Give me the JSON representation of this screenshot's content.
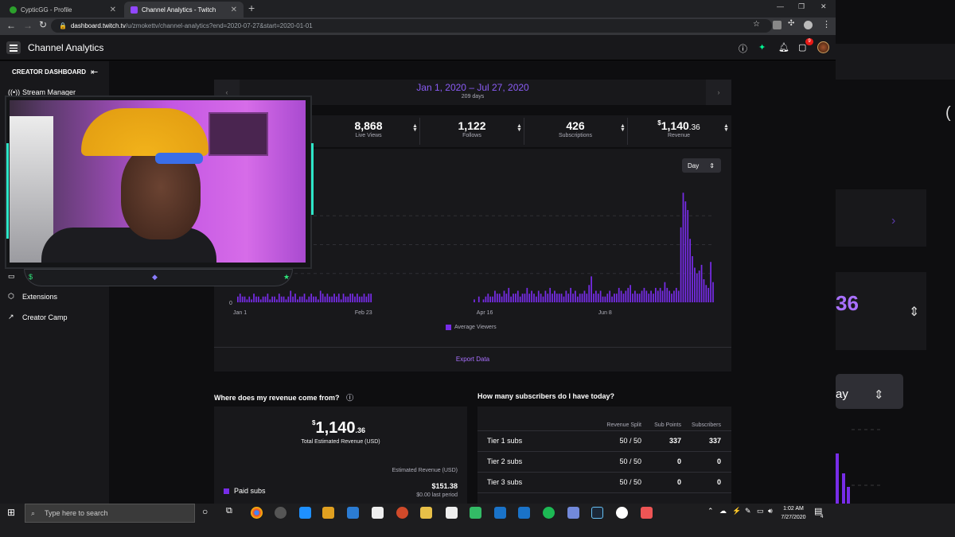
{
  "browser": {
    "tabs": [
      {
        "title": "CypticGG - Profile",
        "active": false
      },
      {
        "title": "Channel Analytics - Twitch",
        "active": true
      }
    ],
    "url_host": "dashboard.twitch.tv",
    "url_path": "/u/zmokettv/channel-analytics?end=2020-07-27&start=2020-01-01"
  },
  "header": {
    "title": "Channel Analytics",
    "notification_count": "9"
  },
  "sidebar": {
    "header": "CREATOR DASHBOARD",
    "items": [
      {
        "label": "Stream Manager",
        "icon": "broadcast-icon"
      },
      {
        "label": "Extensions",
        "icon": "extensions-icon"
      },
      {
        "label": "Creator Camp",
        "icon": "external-link-icon"
      }
    ]
  },
  "date_picker": {
    "range": "Jan 1, 2020 – Jul 27, 2020",
    "days": "209 days"
  },
  "stats": [
    {
      "value": "8,868",
      "label": "Live Views"
    },
    {
      "value": "1,122",
      "label": "Follows"
    },
    {
      "value": "426",
      "label": "Subscriptions"
    },
    {
      "value_currency": "$",
      "value_main": "1,140",
      "value_dec": ".36",
      "label": "Revenue"
    }
  ],
  "chart_controls": {
    "interval": "Day"
  },
  "chart_data": {
    "type": "bar",
    "series": [
      {
        "name": "Average Viewers"
      }
    ],
    "x_tick_labels": [
      "Jan 1",
      "Feb 23",
      "Apr 16",
      "Jun 8"
    ],
    "y_tick_labels": [
      "0"
    ],
    "values": [
      2,
      3,
      2,
      2,
      1,
      2,
      1,
      3,
      2,
      2,
      1,
      2,
      2,
      3,
      1,
      2,
      2,
      1,
      3,
      2,
      2,
      1,
      2,
      4,
      2,
      3,
      1,
      2,
      2,
      3,
      1,
      2,
      3,
      2,
      2,
      1,
      4,
      3,
      2,
      3,
      2,
      2,
      3,
      2,
      3,
      1,
      3,
      2,
      2,
      3,
      3,
      2,
      3,
      2,
      2,
      3,
      2,
      3,
      3,
      0,
      0,
      0,
      0,
      0,
      0,
      0,
      0,
      0,
      0,
      0,
      0,
      0,
      0,
      0,
      0,
      0,
      0,
      0,
      0,
      0,
      0,
      0,
      0,
      0,
      0,
      0,
      0,
      0,
      0,
      0,
      0,
      0,
      0,
      0,
      0,
      0,
      0,
      0,
      0,
      0,
      0,
      0,
      0,
      1,
      0,
      2,
      0,
      1,
      2,
      3,
      2,
      2,
      4,
      3,
      3,
      2,
      4,
      3,
      5,
      2,
      3,
      3,
      4,
      2,
      3,
      3,
      5,
      3,
      4,
      3,
      2,
      4,
      3,
      2,
      4,
      3,
      5,
      3,
      4,
      3,
      3,
      3,
      2,
      4,
      3,
      5,
      3,
      4,
      2,
      3,
      3,
      4,
      3,
      6,
      9,
      3,
      4,
      3,
      4,
      2,
      2,
      3,
      4,
      2,
      3,
      3,
      5,
      4,
      3,
      4,
      5,
      6,
      3,
      4,
      3,
      3,
      4,
      5,
      4,
      3,
      4,
      3,
      5,
      4,
      5,
      4,
      7,
      5,
      4,
      3,
      4,
      5,
      4,
      26,
      38,
      35,
      32,
      22,
      16,
      12,
      10,
      11,
      13,
      8,
      6,
      5,
      14,
      7
    ],
    "ylim": [
      0,
      40
    ]
  },
  "export_label": "Export Data",
  "revenue": {
    "title": "Where does my revenue come from?",
    "currency": "$",
    "total_main": "1,140",
    "total_dec": ".36",
    "total_label": "Total Estimated Revenue (USD)",
    "column_label": "Estimated Revenue (USD)",
    "rows": [
      {
        "label": "Paid subs",
        "value": "$151.38",
        "last": "$0.00 last period"
      }
    ]
  },
  "subscribers": {
    "title": "How many subscribers do I have today?",
    "columns": [
      "Revenue Split",
      "Sub Points",
      "Subscribers"
    ],
    "rows": [
      {
        "tier": "Tier 1 subs",
        "split": "50 / 50",
        "points": "337",
        "subs": "337"
      },
      {
        "tier": "Tier 2 subs",
        "split": "50 / 50",
        "points": "0",
        "subs": "0"
      },
      {
        "tier": "Tier 3 subs",
        "split": "50 / 50",
        "points": "0",
        "subs": "0"
      }
    ]
  },
  "zoom_region": {
    "stat_fragment": "36",
    "day_fragment": "ay"
  },
  "taskbar": {
    "search_placeholder": "Type here to search",
    "time": "1:02 AM",
    "date": "7/27/2020",
    "notif_count": "4"
  },
  "colors": {
    "accent": "#772ce8",
    "accent_light": "#a970ff",
    "bg": "#0e0e10",
    "panel": "#18181b"
  }
}
